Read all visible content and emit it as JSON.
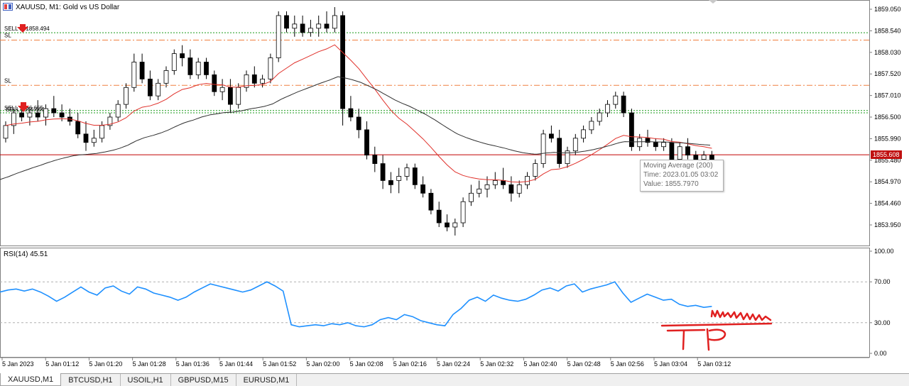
{
  "window": {
    "symbol_title": "XAUUSD, M1:  Gold vs US Dollar",
    "rsi_title": "RSI(14) 45.51"
  },
  "price_axis": {
    "labels": [
      "1859.050",
      "1858.540",
      "1858.030",
      "1857.520",
      "1857.010",
      "1856.500",
      "1855.990",
      "1855.480",
      "1854.970",
      "1854.460",
      "1853.950"
    ],
    "current_price": "1855.608"
  },
  "rsi_axis": {
    "labels": [
      "100.00",
      "70.00",
      "30.00",
      "0.00"
    ]
  },
  "time_axis": {
    "labels": [
      "5 Jan 2023",
      "5 Jan 01:12",
      "5 Jan 01:20",
      "5 Jan 01:28",
      "5 Jan 01:36",
      "5 Jan 01:44",
      "5 Jan 01:52",
      "5 Jan 02:00",
      "5 Jan 02:08",
      "5 Jan 02:16",
      "5 Jan 02:24",
      "5 Jan 02:32",
      "5 Jan 02:40",
      "5 Jan 02:48",
      "5 Jan 02:56",
      "5 Jan 03:04",
      "5 Jan 03:12"
    ]
  },
  "trade_lines": {
    "sell1_label": "SELL    at 1858.494",
    "sl_top_label": "SL",
    "sl_mid_label": "SL",
    "sell2_label": "SELL  1856.655",
    "sell2_overlap": "SELL 1856.600"
  },
  "tooltip": {
    "line1": "Moving Average (200)",
    "line2": "Time: 2023.01.05 03:02",
    "line3": "Value: 1855.7970"
  },
  "annotation": {
    "text": "TP",
    "color": "#e02020"
  },
  "tabs": [
    {
      "label": "XAUUSD,M1",
      "active": true
    },
    {
      "label": "BTCUSD,H1",
      "active": false
    },
    {
      "label": "USOIL,H1",
      "active": false
    },
    {
      "label": "GBPUSD,M15",
      "active": false
    },
    {
      "label": "EURUSD,M1",
      "active": false
    }
  ],
  "colors": {
    "bull_candle": "#ffffff",
    "bear_candle": "#000000",
    "ma_fast": "#e0302a",
    "ma_slow": "#303030",
    "rsi_line": "#1e90ff",
    "sl_line": "#f08040",
    "entry_line": "#1a9a1a",
    "bid_line": "#c00000"
  },
  "chart_data": {
    "type": "candlestick",
    "symbol": "XAUUSD",
    "timeframe": "M1",
    "ylim": [
      1853.7,
      1859.2
    ],
    "y_ticks": [
      1859.05,
      1858.54,
      1858.03,
      1857.52,
      1857.01,
      1856.5,
      1855.99,
      1855.48,
      1854.97,
      1854.46,
      1853.95
    ],
    "bid": 1855.608,
    "levels": [
      {
        "name": "sell-entry-1",
        "price": 1858.494
      },
      {
        "name": "stop-loss-top",
        "price": 1858.32
      },
      {
        "name": "stop-loss-mid",
        "price": 1857.25
      },
      {
        "name": "sell-entry-2",
        "price": 1856.655
      },
      {
        "name": "sell-entry-2b",
        "price": 1856.6
      }
    ],
    "candles": [
      [
        1856.0,
        1856.4,
        1855.9,
        1856.3
      ],
      [
        1856.3,
        1856.7,
        1856.1,
        1856.6
      ],
      [
        1856.6,
        1856.8,
        1856.4,
        1856.5
      ],
      [
        1856.5,
        1856.7,
        1856.3,
        1856.6
      ],
      [
        1856.6,
        1856.9,
        1856.4,
        1856.5
      ],
      [
        1856.5,
        1856.8,
        1856.3,
        1856.7
      ],
      [
        1856.7,
        1857.0,
        1856.5,
        1856.6
      ],
      [
        1856.6,
        1856.8,
        1856.4,
        1856.5
      ],
      [
        1856.5,
        1856.7,
        1856.3,
        1856.4
      ],
      [
        1856.4,
        1856.6,
        1856.0,
        1856.1
      ],
      [
        1856.1,
        1856.4,
        1855.7,
        1855.9
      ],
      [
        1855.9,
        1856.2,
        1855.8,
        1856.0
      ],
      [
        1856.0,
        1856.4,
        1855.9,
        1856.3
      ],
      [
        1856.3,
        1856.6,
        1856.2,
        1856.5
      ],
      [
        1856.5,
        1856.9,
        1856.4,
        1856.8
      ],
      [
        1856.8,
        1857.3,
        1856.7,
        1857.2
      ],
      [
        1857.2,
        1858.0,
        1857.1,
        1857.8
      ],
      [
        1857.8,
        1858.0,
        1857.3,
        1857.4
      ],
      [
        1857.4,
        1857.6,
        1856.9,
        1857.0
      ],
      [
        1857.0,
        1857.4,
        1856.9,
        1857.3
      ],
      [
        1857.3,
        1857.7,
        1857.2,
        1857.6
      ],
      [
        1857.6,
        1858.1,
        1857.5,
        1858.0
      ],
      [
        1858.0,
        1858.2,
        1857.7,
        1857.9
      ],
      [
        1857.9,
        1858.1,
        1857.4,
        1857.5
      ],
      [
        1857.5,
        1857.9,
        1857.4,
        1857.8
      ],
      [
        1857.8,
        1857.9,
        1857.4,
        1857.5
      ],
      [
        1857.5,
        1857.6,
        1857.0,
        1857.1
      ],
      [
        1857.1,
        1857.4,
        1856.9,
        1857.2
      ],
      [
        1857.2,
        1857.4,
        1856.6,
        1856.8
      ],
      [
        1856.8,
        1857.3,
        1856.7,
        1857.2
      ],
      [
        1857.2,
        1857.6,
        1857.1,
        1857.5
      ],
      [
        1857.5,
        1857.7,
        1857.2,
        1857.3
      ],
      [
        1857.3,
        1857.5,
        1857.2,
        1857.4
      ],
      [
        1857.4,
        1858.0,
        1857.3,
        1857.9
      ],
      [
        1857.9,
        1859.0,
        1857.8,
        1858.9
      ],
      [
        1858.9,
        1859.0,
        1858.5,
        1858.6
      ],
      [
        1858.6,
        1858.9,
        1858.4,
        1858.7
      ],
      [
        1858.7,
        1858.9,
        1858.4,
        1858.5
      ],
      [
        1858.5,
        1858.8,
        1858.4,
        1858.6
      ],
      [
        1858.6,
        1858.9,
        1858.4,
        1858.7
      ],
      [
        1858.7,
        1859.0,
        1858.5,
        1858.6
      ],
      [
        1858.6,
        1859.1,
        1858.5,
        1858.9
      ],
      [
        1858.9,
        1859.0,
        1856.3,
        1856.7
      ],
      [
        1856.7,
        1857.0,
        1856.4,
        1856.5
      ],
      [
        1856.5,
        1856.7,
        1856.0,
        1856.2
      ],
      [
        1856.2,
        1856.4,
        1855.5,
        1855.6
      ],
      [
        1855.6,
        1855.8,
        1855.2,
        1855.4
      ],
      [
        1855.4,
        1855.6,
        1854.8,
        1855.0
      ],
      [
        1855.0,
        1855.2,
        1854.7,
        1854.9
      ],
      [
        1855.0,
        1855.3,
        1854.7,
        1855.1
      ],
      [
        1855.1,
        1855.4,
        1855.0,
        1855.3
      ],
      [
        1855.3,
        1855.4,
        1854.8,
        1854.9
      ],
      [
        1854.9,
        1855.1,
        1854.6,
        1854.7
      ],
      [
        1854.7,
        1854.8,
        1854.2,
        1854.3
      ],
      [
        1854.3,
        1854.5,
        1853.9,
        1854.0
      ],
      [
        1854.0,
        1854.2,
        1853.8,
        1853.9
      ],
      [
        1853.9,
        1854.1,
        1853.7,
        1854.0
      ],
      [
        1854.0,
        1854.6,
        1853.9,
        1854.5
      ],
      [
        1854.5,
        1854.9,
        1854.4,
        1854.7
      ],
      [
        1854.7,
        1855.0,
        1854.6,
        1854.8
      ],
      [
        1854.8,
        1855.1,
        1854.6,
        1854.9
      ],
      [
        1854.9,
        1855.2,
        1854.8,
        1855.0
      ],
      [
        1855.0,
        1855.3,
        1854.8,
        1854.9
      ],
      [
        1854.9,
        1855.1,
        1854.5,
        1854.7
      ],
      [
        1854.7,
        1855.0,
        1854.6,
        1854.9
      ],
      [
        1854.9,
        1855.2,
        1854.8,
        1855.1
      ],
      [
        1855.1,
        1855.5,
        1855.0,
        1855.4
      ],
      [
        1855.4,
        1856.2,
        1855.3,
        1856.1
      ],
      [
        1856.1,
        1856.3,
        1855.9,
        1856.0
      ],
      [
        1856.0,
        1856.2,
        1855.3,
        1855.4
      ],
      [
        1855.4,
        1855.8,
        1855.3,
        1855.7
      ],
      [
        1855.7,
        1856.1,
        1855.6,
        1856.0
      ],
      [
        1856.0,
        1856.3,
        1855.9,
        1856.2
      ],
      [
        1856.2,
        1856.5,
        1856.1,
        1856.4
      ],
      [
        1856.4,
        1856.7,
        1856.3,
        1856.6
      ],
      [
        1856.6,
        1856.9,
        1856.5,
        1856.8
      ],
      [
        1856.8,
        1857.1,
        1856.7,
        1857.0
      ],
      [
        1857.0,
        1857.1,
        1856.5,
        1856.6
      ],
      [
        1856.6,
        1856.7,
        1855.7,
        1855.8
      ],
      [
        1855.8,
        1856.1,
        1855.7,
        1856.0
      ],
      [
        1856.0,
        1856.2,
        1855.8,
        1855.9
      ],
      [
        1855.9,
        1856.0,
        1855.7,
        1855.8
      ],
      [
        1855.8,
        1856.0,
        1855.7,
        1855.9
      ],
      [
        1855.9,
        1856.0,
        1855.4,
        1855.5
      ],
      [
        1855.5,
        1855.9,
        1855.4,
        1855.8
      ],
      [
        1855.8,
        1856.0,
        1855.5,
        1855.6
      ],
      [
        1855.6,
        1855.7,
        1855.4,
        1855.5
      ],
      [
        1855.5,
        1855.7,
        1855.4,
        1855.6
      ],
      [
        1855.6,
        1855.7,
        1855.5,
        1855.5
      ]
    ],
    "moving_average_fast": {
      "name": "MA fast",
      "points": "estimated from candles"
    },
    "moving_average_200": {
      "name": "Moving Average (200)",
      "last_value": 1855.797
    },
    "rsi": {
      "name": "RSI(14)",
      "last": 45.51,
      "ylim": [
        0,
        100
      ],
      "levels": [
        70,
        30
      ],
      "values": [
        60,
        62,
        63,
        61,
        63,
        60,
        56,
        51,
        55,
        60,
        65,
        60,
        57,
        64,
        66,
        61,
        58,
        65,
        63,
        59,
        57,
        55,
        52,
        55,
        60,
        64,
        68,
        66,
        64,
        62,
        60,
        62,
        66,
        70,
        66,
        61,
        28,
        26,
        27,
        28,
        27,
        29,
        28,
        30,
        27,
        26,
        28,
        33,
        35,
        33,
        38,
        36,
        32,
        30,
        28,
        27,
        38,
        44,
        52,
        55,
        51,
        57,
        54,
        52,
        51,
        53,
        57,
        62,
        64,
        61,
        66,
        68,
        60,
        63,
        65,
        67,
        70,
        59,
        50,
        54,
        58,
        55,
        52,
        53,
        48,
        46,
        47,
        45,
        46
      ]
    }
  }
}
